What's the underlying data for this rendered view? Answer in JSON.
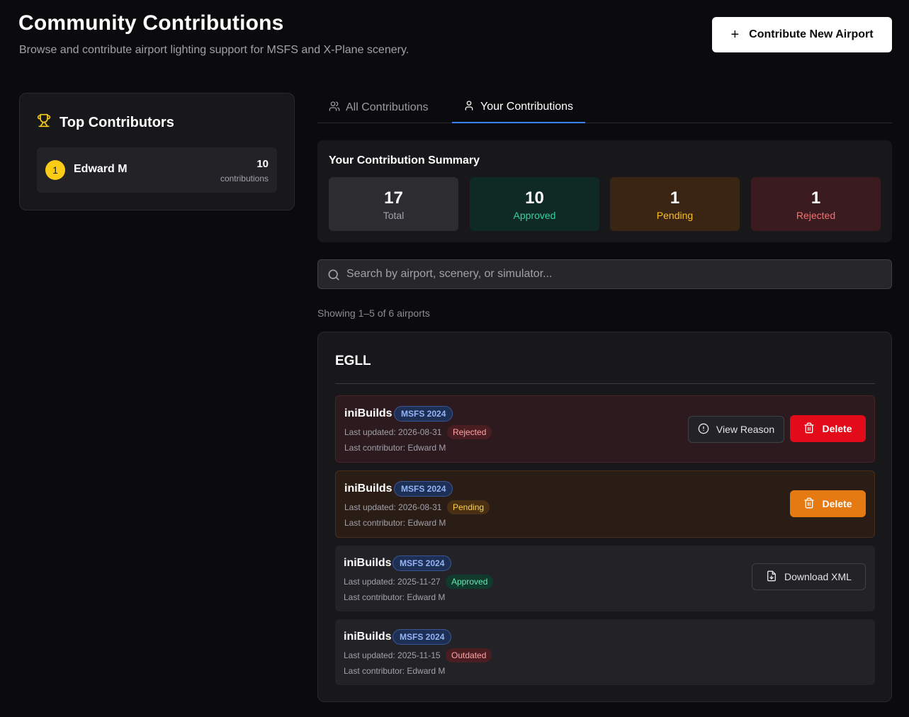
{
  "header": {
    "title": "Community Contributions",
    "subtitle": "Browse and contribute airport lighting support for MSFS and X-Plane scenery.",
    "contribute_label": "Contribute New Airport"
  },
  "sidebar": {
    "title": "Top Contributors",
    "contributors": [
      {
        "rank": "1",
        "name": "Edward M",
        "count": "10",
        "unit": "contributions"
      }
    ]
  },
  "tabs": {
    "all_label": "All Contributions",
    "yours_label": "Your Contributions",
    "active": "Your Contributions"
  },
  "summary": {
    "title": "Your Contribution Summary",
    "total": {
      "value": "17",
      "label": "Total"
    },
    "approved": {
      "value": "10",
      "label": "Approved"
    },
    "pending": {
      "value": "1",
      "label": "Pending"
    },
    "rejected": {
      "value": "1",
      "label": "Rejected"
    }
  },
  "search": {
    "placeholder": "Search by airport, scenery, or simulator...",
    "value": ""
  },
  "results": {
    "showing_text": "Showing 1–5 of 6 airports"
  },
  "airports": [
    {
      "code": "EGLL",
      "entries": [
        {
          "name": "iniBuilds",
          "simulator": "MSFS 2024",
          "updated": "Last updated: 2026-08-31",
          "status": "Rejected",
          "contributor": "Last contributor: Edward M",
          "actions": [
            "View Reason",
            "Delete"
          ]
        },
        {
          "name": "iniBuilds",
          "simulator": "MSFS 2024",
          "updated": "Last updated: 2026-08-31",
          "status": "Pending",
          "contributor": "Last contributor: Edward M",
          "actions": [
            "Delete"
          ]
        },
        {
          "name": "iniBuilds",
          "simulator": "MSFS 2024",
          "updated": "Last updated: 2025-11-27",
          "status": "Approved",
          "contributor": "Last contributor: Edward M",
          "actions": [
            "Download XML"
          ]
        },
        {
          "name": "iniBuilds",
          "simulator": "MSFS 2024",
          "updated": "Last updated: 2025-11-15",
          "status": "Outdated",
          "contributor": "Last contributor: Edward M",
          "actions": []
        }
      ]
    }
  ],
  "colors": {
    "background": "#0b0b0d",
    "accent": "#3b82f6",
    "approved": "#34d399",
    "pending": "#fbbf24",
    "rejected": "#f87171",
    "delete_red": "#e30b1a",
    "delete_orange": "#e57a12",
    "trophy": "#facc15"
  },
  "icons": {
    "contribute": "plus-icon",
    "sidebar_title": "trophy-icon",
    "tab_all": "users-icon",
    "tab_yours": "user-icon",
    "search": "search-icon",
    "view_reason": "alert-circle-icon",
    "delete": "trash-icon",
    "download": "file-download-icon"
  }
}
